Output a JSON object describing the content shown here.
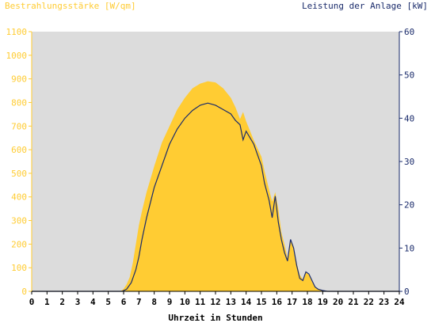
{
  "chart_data": {
    "type": "area",
    "xlabel": "Uhrzeit in Stunden",
    "ylabel_left": "Bestrahlungsstärke [W/qm]",
    "ylabel_right": "Leistung der Anlage [kW]",
    "xlim": [
      0,
      24
    ],
    "ylim_left": [
      0,
      1100
    ],
    "ylim_right": [
      0,
      60
    ],
    "x_ticks": [
      "0",
      "1",
      "2",
      "3",
      "4",
      "5",
      "6",
      "7",
      "8",
      "9",
      "10",
      "11",
      "12",
      "13",
      "14",
      "15",
      "16",
      "17",
      "18",
      "19",
      "20",
      "21",
      "22",
      "23",
      "24"
    ],
    "y_ticks_left": [
      "0",
      "100",
      "200",
      "300",
      "400",
      "500",
      "600",
      "700",
      "800",
      "900",
      "1000",
      "1100"
    ],
    "y_ticks_right": [
      "0",
      "10",
      "20",
      "30",
      "40",
      "50",
      "60"
    ],
    "legend": "none",
    "series": [
      {
        "axis": "left",
        "style": "filled-area",
        "color": "#ffcc33",
        "x": [
          0,
          5.8,
          6.0,
          6.2,
          6.4,
          6.6,
          6.8,
          7.0,
          7.2,
          7.5,
          8.0,
          8.5,
          9.0,
          9.5,
          10.0,
          10.5,
          11.0,
          11.5,
          12.0,
          12.5,
          13.0,
          13.3,
          13.6,
          13.8,
          14.0,
          14.5,
          15.0,
          15.2,
          15.5,
          15.7,
          15.9,
          16.1,
          16.3,
          16.5,
          16.7,
          16.9,
          17.1,
          17.3,
          17.5,
          17.7,
          17.9,
          18.1,
          18.3,
          18.5,
          18.7,
          18.9,
          19.1,
          19.3,
          24
        ],
        "y": [
          0,
          0,
          10,
          30,
          60,
          120,
          200,
          280,
          340,
          420,
          530,
          630,
          700,
          770,
          820,
          860,
          880,
          890,
          885,
          860,
          820,
          780,
          730,
          760,
          720,
          640,
          570,
          510,
          430,
          380,
          420,
          350,
          250,
          200,
          140,
          220,
          190,
          120,
          70,
          50,
          80,
          70,
          40,
          20,
          10,
          5,
          2,
          0,
          0
        ]
      },
      {
        "axis": "right",
        "style": "line",
        "color": "#1a2b6b",
        "x": [
          0,
          5.9,
          6.2,
          6.5,
          6.8,
          7.0,
          7.2,
          7.5,
          8.0,
          8.5,
          9.0,
          9.5,
          10.0,
          10.5,
          11.0,
          11.5,
          12.0,
          12.5,
          13.0,
          13.3,
          13.6,
          13.8,
          14.0,
          14.5,
          15.0,
          15.2,
          15.5,
          15.7,
          15.9,
          16.1,
          16.3,
          16.5,
          16.7,
          16.9,
          17.1,
          17.3,
          17.5,
          17.7,
          17.9,
          18.1,
          18.3,
          18.5,
          18.7,
          19.0,
          19.3,
          24
        ],
        "y": [
          0,
          0,
          0.5,
          2,
          5,
          8,
          12,
          17,
          24,
          29,
          34,
          37.5,
          40,
          41.8,
          43,
          43.5,
          43,
          42,
          41,
          39.5,
          38.5,
          35,
          37,
          34,
          29,
          25,
          21,
          17,
          22,
          16,
          12,
          9,
          7,
          12,
          10,
          6,
          3,
          2.5,
          4.5,
          4,
          2.5,
          1,
          0.5,
          0.2,
          0,
          0
        ]
      }
    ]
  }
}
